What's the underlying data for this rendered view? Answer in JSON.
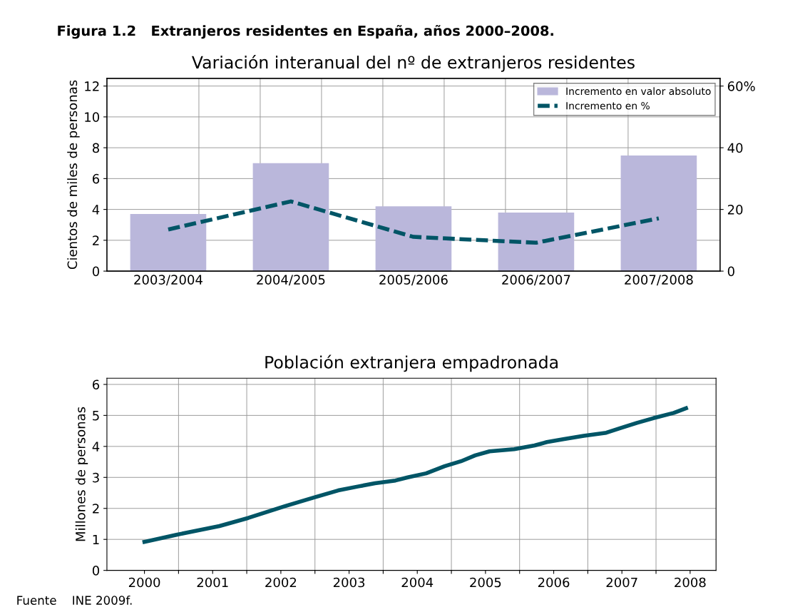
{
  "chart_data": [
    {
      "type": "bar",
      "title": "Variación interanual del nº de extranjeros residentes",
      "ylabel": "Cientos de miles de personas",
      "annotations": [
        "Figura 1.2   Extranjeros residentes en España, años 2000–2008."
      ],
      "categories": [
        "2003/2004",
        "2004/2005",
        "2005/2006",
        "2006/2007",
        "2007/2008"
      ],
      "series": [
        {
          "name": "Incremento en valor absoluto",
          "color": "#bab7db",
          "values": [
            3.7,
            7.0,
            4.2,
            3.8,
            7.5
          ]
        },
        {
          "name": "Incremento en %",
          "type": "line",
          "axis": "y2",
          "color": "#005566",
          "line_style": "dashed",
          "values": [
            13.5,
            22.6,
            11.1,
            9.2,
            17.1
          ]
        }
      ],
      "ylim": [
        0,
        12.5
      ],
      "yticks": [
        0,
        2,
        4,
        6,
        8,
        10,
        12
      ],
      "y2lim": [
        0,
        62.5
      ],
      "y2ticks": [
        0,
        20,
        40,
        {
          "value": 60,
          "label": "60%"
        }
      ],
      "grid": true,
      "legend": "top right"
    },
    {
      "type": "line",
      "title": "Población extranjera empadronada",
      "ylabel": "Millones de personas",
      "annotations": [
        "Fuente    INE 2009f."
      ],
      "series": [
        {
          "color": "#005566",
          "x": [
            2000,
            2000.47,
            2001.1,
            2001.52,
            2002.06,
            2002.48,
            2002.84,
            2003.14,
            2003.38,
            2003.68,
            2003.86,
            2004.13,
            2004.4,
            2004.64,
            2004.85,
            2005.06,
            2005.42,
            2005.72,
            2005.9,
            2006.14,
            2006.44,
            2006.77,
            2006.98,
            2007.22,
            2007.46,
            2007.76,
            2007.94
          ],
          "values": [
            0.92,
            1.15,
            1.43,
            1.69,
            2.07,
            2.35,
            2.58,
            2.71,
            2.81,
            2.9,
            3.0,
            3.13,
            3.36,
            3.52,
            3.71,
            3.84,
            3.91,
            4.03,
            4.14,
            4.23,
            4.34,
            4.44,
            4.59,
            4.76,
            4.91,
            5.08,
            5.23
          ]
        }
      ],
      "xlim": [
        1999.45,
        2008.38
      ],
      "xticks": [
        2000,
        {
          "value": 2000.5,
          "label": null
        },
        2001,
        {
          "value": 2001.5,
          "label": null
        },
        2002,
        {
          "value": 2002.5,
          "label": null
        },
        2003,
        {
          "value": 2003.5,
          "label": null
        },
        2004,
        {
          "value": 2004.5,
          "label": null
        },
        2005,
        {
          "value": 2005.5,
          "label": null
        },
        2006,
        {
          "value": 2006.5,
          "label": null
        },
        2007,
        {
          "value": 2007.5,
          "label": null
        },
        2008
      ],
      "ylim": [
        0,
        6.2
      ],
      "yticks": [
        0,
        1,
        2,
        3,
        4,
        5,
        6
      ],
      "grid": true
    }
  ]
}
